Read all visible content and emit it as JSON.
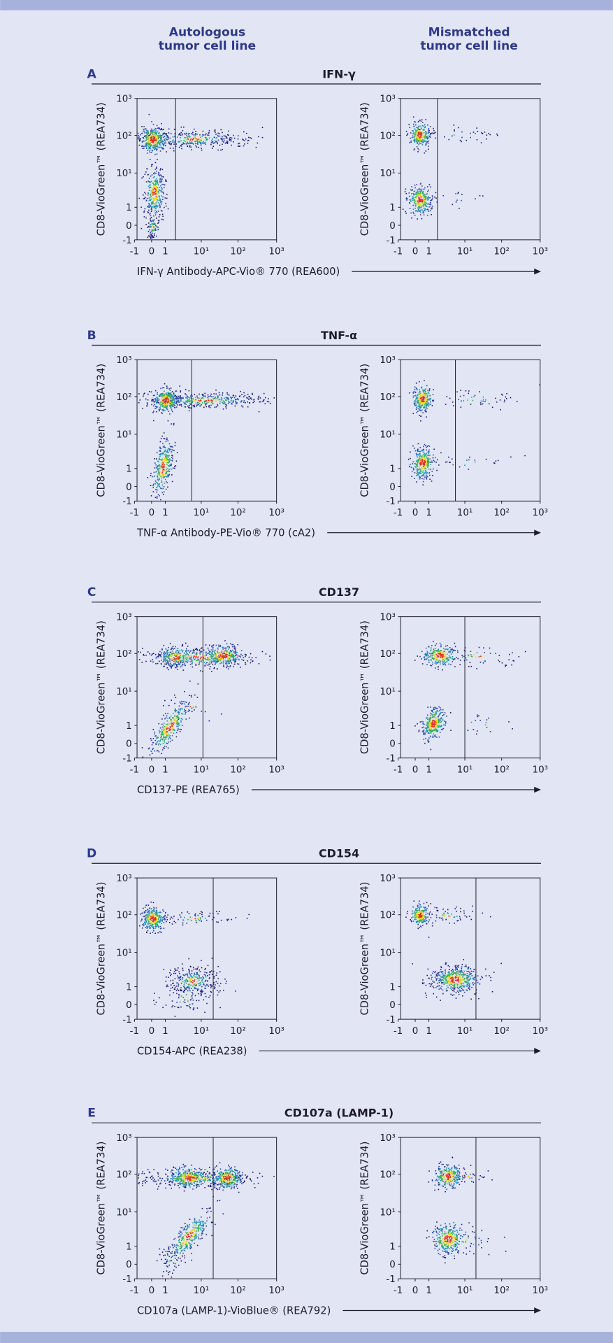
{
  "column_headers": [
    [
      "Autologous",
      "tumor cell line"
    ],
    [
      "Mismatched",
      "tumor cell line"
    ]
  ],
  "x_ticks": [
    "-1",
    "0",
    "1",
    "10¹",
    "10²",
    "10³"
  ],
  "y_ticks": [
    "10³",
    "10²",
    "10¹",
    "1",
    "0",
    "-1"
  ],
  "panels": [
    {
      "letter": "A",
      "title": "IFN-γ",
      "x_label": "IFN-γ Antibody-APC-Vio® 770 (REA600)",
      "y_label": "CD8-VioGreen™ (REA734)"
    },
    {
      "letter": "B",
      "title": "TNF-α",
      "x_label": "TNF-α Antibody-PE-Vio® 770 (cA2)",
      "y_label": "CD8-VioGreen™ (REA734)"
    },
    {
      "letter": "C",
      "title": "CD137",
      "x_label": "CD137-PE (REA765)",
      "y_label": "CD8-VioGreen™ (REA734)"
    },
    {
      "letter": "D",
      "title": "CD154",
      "x_label": "CD154-APC (REA238)",
      "y_label": "CD8-VioGreen™ (REA734)"
    },
    {
      "letter": "E",
      "title": "CD107a (LAMP-1)",
      "x_label": "CD107a (LAMP-1)-VioBlue® (REA792)",
      "y_label": "CD8-VioGreen™ (REA734)"
    }
  ]
}
